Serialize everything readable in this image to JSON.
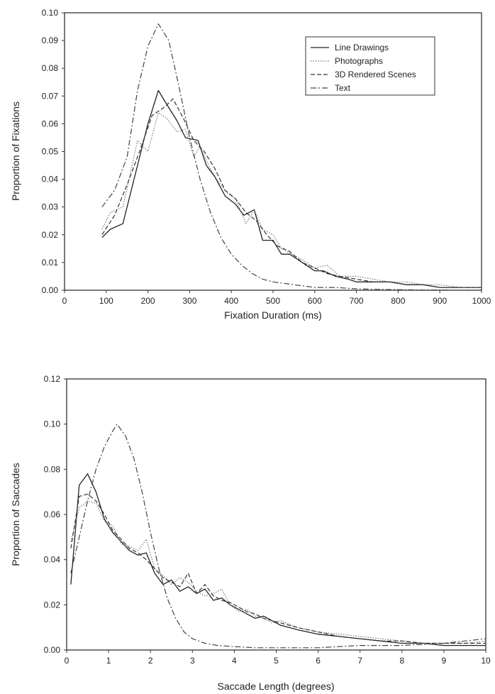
{
  "chart_data": [
    {
      "type": "line",
      "title": "",
      "xlabel": "Fixation Duration (ms)",
      "ylabel": "Proportion of Fixations",
      "xlim": [
        0,
        1000
      ],
      "ylim": [
        0,
        0.1
      ],
      "xticks": [
        0,
        100,
        200,
        300,
        400,
        500,
        600,
        700,
        800,
        900,
        1000
      ],
      "yticks": [
        0.0,
        0.01,
        0.02,
        0.03,
        0.04,
        0.05,
        0.06,
        0.07,
        0.08,
        0.09,
        0.1
      ],
      "ytick_labels": [
        "0.00",
        "0.01",
        "0.02",
        "0.03",
        "0.04",
        "0.05",
        "0.06",
        "0.07",
        "0.08",
        "0.09",
        "0.10"
      ],
      "xtick_labels": [
        "0",
        "100",
        "200",
        "300",
        "400",
        "500",
        "600",
        "700",
        "800",
        "900",
        "1000"
      ],
      "legend_position": "top-right",
      "grid": false,
      "series": [
        {
          "name": "Line Drawings",
          "style": "solid",
          "x": [
            90,
            110,
            140,
            175,
            200,
            225,
            245,
            270,
            290,
            320,
            340,
            360,
            385,
            410,
            430,
            455,
            475,
            500,
            520,
            540,
            560,
            580,
            600,
            620,
            650,
            680,
            700,
            740,
            780,
            820,
            860,
            900,
            950,
            1000
          ],
          "y": [
            0.019,
            0.022,
            0.024,
            0.045,
            0.06,
            0.072,
            0.067,
            0.061,
            0.055,
            0.054,
            0.045,
            0.041,
            0.034,
            0.031,
            0.027,
            0.029,
            0.018,
            0.018,
            0.013,
            0.013,
            0.011,
            0.009,
            0.007,
            0.007,
            0.005,
            0.004,
            0.003,
            0.003,
            0.003,
            0.002,
            0.002,
            0.001,
            0.001,
            0.001
          ]
        },
        {
          "name": "Photographs",
          "style": "dotted",
          "x": [
            90,
            110,
            140,
            175,
            200,
            225,
            245,
            270,
            290,
            310,
            325,
            345,
            365,
            390,
            410,
            435,
            455,
            475,
            500,
            520,
            545,
            570,
            600,
            630,
            660,
            700,
            740,
            780,
            820,
            860,
            900,
            950,
            1000
          ],
          "y": [
            0.022,
            0.028,
            0.03,
            0.054,
            0.05,
            0.064,
            0.062,
            0.057,
            0.058,
            0.048,
            0.052,
            0.045,
            0.04,
            0.035,
            0.033,
            0.024,
            0.029,
            0.022,
            0.02,
            0.015,
            0.013,
            0.011,
            0.008,
            0.009,
            0.005,
            0.005,
            0.004,
            0.003,
            0.003,
            0.002,
            0.002,
            0.001,
            0.001
          ]
        },
        {
          "name": "3D Rendered Scenes",
          "style": "dashed",
          "x": [
            90,
            120,
            150,
            180,
            210,
            240,
            260,
            285,
            310,
            335,
            360,
            385,
            410,
            435,
            460,
            485,
            510,
            540,
            570,
            600,
            630,
            660,
            700,
            740,
            780,
            820,
            860,
            900,
            950,
            1000
          ],
          "y": [
            0.02,
            0.027,
            0.038,
            0.05,
            0.063,
            0.066,
            0.069,
            0.062,
            0.054,
            0.05,
            0.044,
            0.036,
            0.033,
            0.028,
            0.025,
            0.02,
            0.016,
            0.014,
            0.01,
            0.008,
            0.006,
            0.005,
            0.004,
            0.003,
            0.003,
            0.002,
            0.002,
            0.001,
            0.001,
            0.001
          ]
        },
        {
          "name": "Text",
          "style": "dashdot",
          "x": [
            90,
            120,
            150,
            175,
            200,
            225,
            250,
            275,
            300,
            325,
            350,
            375,
            400,
            425,
            450,
            475,
            500,
            550,
            600,
            650,
            700,
            750,
            800,
            850,
            900,
            950,
            1000
          ],
          "y": [
            0.03,
            0.036,
            0.048,
            0.072,
            0.088,
            0.096,
            0.09,
            0.073,
            0.055,
            0.04,
            0.028,
            0.019,
            0.013,
            0.009,
            0.006,
            0.004,
            0.003,
            0.002,
            0.001,
            0.001,
            0.0005,
            0.0003,
            0.0002,
            0.0001,
            0.0001,
            0.0,
            0.0
          ]
        }
      ]
    },
    {
      "type": "line",
      "title": "",
      "xlabel": "Saccade Length (degrees)",
      "ylabel": "Proportion of Saccades",
      "xlim": [
        0,
        10
      ],
      "ylim": [
        0,
        0.12
      ],
      "xticks": [
        0,
        1,
        2,
        3,
        4,
        5,
        6,
        7,
        8,
        9,
        10
      ],
      "yticks": [
        0.0,
        0.02,
        0.04,
        0.06,
        0.08,
        0.1,
        0.12
      ],
      "ytick_labels": [
        "0.00",
        "0.02",
        "0.04",
        "0.06",
        "0.08",
        "0.10",
        "0.12"
      ],
      "xtick_labels": [
        "0",
        "1",
        "2",
        "3",
        "4",
        "5",
        "6",
        "7",
        "8",
        "9",
        "10"
      ],
      "grid": false,
      "series": [
        {
          "name": "Line Drawings",
          "style": "solid",
          "x": [
            0.1,
            0.3,
            0.5,
            0.7,
            0.9,
            1.1,
            1.3,
            1.5,
            1.7,
            1.9,
            2.1,
            2.3,
            2.5,
            2.7,
            2.9,
            3.1,
            3.3,
            3.5,
            3.7,
            3.9,
            4.1,
            4.3,
            4.5,
            4.7,
            4.9,
            5.1,
            5.5,
            6.0,
            6.5,
            7.0,
            7.5,
            8.0,
            8.5,
            9.0,
            9.5,
            10.0
          ],
          "y": [
            0.029,
            0.073,
            0.078,
            0.07,
            0.058,
            0.052,
            0.048,
            0.044,
            0.042,
            0.043,
            0.034,
            0.029,
            0.031,
            0.026,
            0.028,
            0.025,
            0.027,
            0.022,
            0.023,
            0.02,
            0.018,
            0.016,
            0.014,
            0.015,
            0.013,
            0.011,
            0.009,
            0.007,
            0.006,
            0.005,
            0.004,
            0.003,
            0.003,
            0.002,
            0.002,
            0.002
          ]
        },
        {
          "name": "Photographs",
          "style": "dotted",
          "x": [
            0.1,
            0.3,
            0.5,
            0.7,
            0.9,
            1.1,
            1.3,
            1.5,
            1.7,
            1.9,
            2.1,
            2.3,
            2.5,
            2.7,
            2.9,
            3.1,
            3.3,
            3.5,
            3.7,
            3.9,
            4.1,
            4.3,
            4.5,
            4.7,
            4.9,
            5.1,
            5.5,
            6.0,
            6.5,
            7.0,
            7.5,
            8.0,
            8.5,
            9.0,
            9.5,
            10.0
          ],
          "y": [
            0.048,
            0.063,
            0.066,
            0.065,
            0.057,
            0.055,
            0.047,
            0.046,
            0.044,
            0.049,
            0.036,
            0.033,
            0.029,
            0.032,
            0.03,
            0.026,
            0.024,
            0.025,
            0.027,
            0.02,
            0.017,
            0.018,
            0.015,
            0.014,
            0.012,
            0.013,
            0.01,
            0.008,
            0.007,
            0.006,
            0.005,
            0.004,
            0.003,
            0.003,
            0.003,
            0.004
          ]
        },
        {
          "name": "3D Rendered Scenes",
          "style": "dashed",
          "x": [
            0.1,
            0.3,
            0.5,
            0.7,
            0.9,
            1.1,
            1.3,
            1.5,
            1.7,
            1.9,
            2.1,
            2.3,
            2.5,
            2.7,
            2.9,
            3.1,
            3.3,
            3.5,
            3.7,
            3.9,
            4.1,
            4.3,
            4.5,
            4.7,
            4.9,
            5.1,
            5.5,
            6.0,
            6.5,
            7.0,
            7.5,
            8.0,
            8.5,
            9.0,
            9.5,
            10.0
          ],
          "y": [
            0.045,
            0.068,
            0.069,
            0.066,
            0.06,
            0.053,
            0.049,
            0.045,
            0.043,
            0.04,
            0.036,
            0.032,
            0.03,
            0.028,
            0.034,
            0.025,
            0.029,
            0.024,
            0.022,
            0.021,
            0.019,
            0.017,
            0.016,
            0.014,
            0.013,
            0.012,
            0.01,
            0.008,
            0.006,
            0.005,
            0.004,
            0.004,
            0.003,
            0.003,
            0.003,
            0.003
          ]
        },
        {
          "name": "Text",
          "style": "dashdot",
          "x": [
            0.1,
            0.3,
            0.5,
            0.7,
            0.9,
            1.1,
            1.2,
            1.4,
            1.6,
            1.8,
            2.0,
            2.2,
            2.4,
            2.6,
            2.8,
            3.0,
            3.3,
            3.6,
            4.0,
            4.5,
            5.0,
            5.5,
            6.0,
            7.0,
            8.0,
            9.0,
            10.0
          ],
          "y": [
            0.034,
            0.05,
            0.066,
            0.08,
            0.09,
            0.097,
            0.1,
            0.095,
            0.085,
            0.07,
            0.052,
            0.036,
            0.023,
            0.014,
            0.008,
            0.005,
            0.003,
            0.002,
            0.0015,
            0.001,
            0.001,
            0.001,
            0.001,
            0.002,
            0.002,
            0.003,
            0.005
          ]
        }
      ]
    }
  ]
}
